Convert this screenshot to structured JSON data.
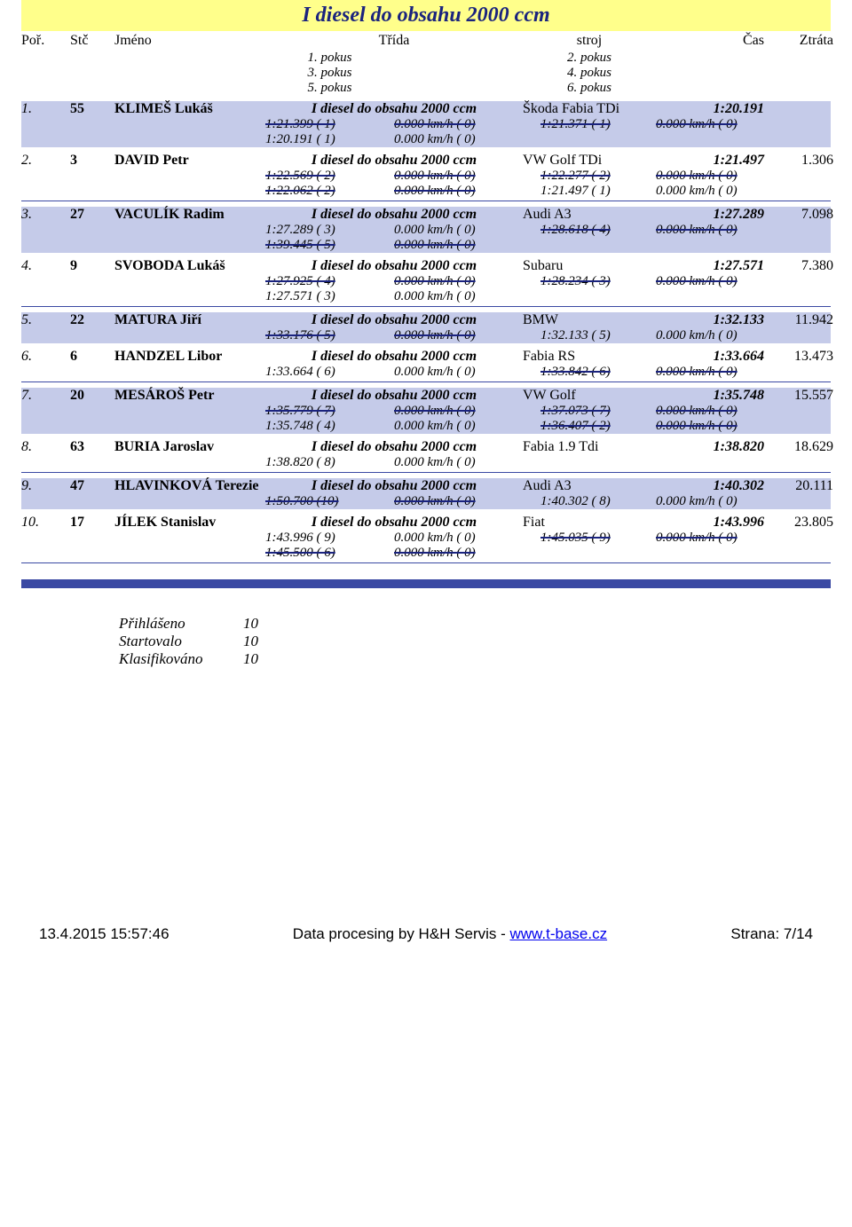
{
  "title": "I diesel do obsahu 2000 ccm",
  "headers": {
    "por": "Poř.",
    "stc": "Stč",
    "jmeno": "Jméno",
    "trida": "Třída",
    "stroj": "stroj",
    "cas": "Čas",
    "ztrata": "Ztráta",
    "p1": "1. pokus",
    "p2": "2. pokus",
    "p3": "3. pokus",
    "p4": "4. pokus",
    "p5": "5. pokus",
    "p6": "6. pokus"
  },
  "rows": [
    {
      "por": "1.",
      "stc": "55",
      "name": "KLIMEŠ Lukáš",
      "class": "I diesel do obsahu 2000 ccm",
      "car": "Škoda Fabia TDi",
      "time": "1:20.191",
      "loss": "",
      "alt": true,
      "sub": [
        {
          "t1": "1:21.399 ( 1)",
          "t1s": true,
          "s1": "0.000 km/h  ( 0)",
          "s1s": true,
          "t2": "1:21.371 ( 1)",
          "t2s": true,
          "s2": "0.000 km/h  ( 0)",
          "s2s": true
        },
        {
          "t1": "1:20.191 ( 1)",
          "t1s": false,
          "s1": "0.000 km/h  ( 0)",
          "s1s": false,
          "t2": "",
          "t2s": false,
          "s2": "",
          "s2s": false
        }
      ]
    },
    {
      "por": "2.",
      "stc": "3",
      "name": "DAVID Petr",
      "class": "I diesel do obsahu 2000 ccm",
      "car": "VW Golf  TDi",
      "time": "1:21.497",
      "loss": "1.306",
      "alt": false,
      "sub": [
        {
          "t1": "1:22.569 ( 2)",
          "t1s": true,
          "s1": "0.000 km/h  ( 0)",
          "s1s": true,
          "t2": "1:22.277 ( 2)",
          "t2s": true,
          "s2": "0.000 km/h  ( 0)",
          "s2s": true
        },
        {
          "t1": "1:22.062 ( 2)",
          "t1s": true,
          "s1": "0.000 km/h  ( 0)",
          "s1s": true,
          "t2": "1:21.497 ( 1)",
          "t2s": false,
          "s2": "0.000 km/h  ( 0)",
          "s2s": false
        }
      ]
    },
    {
      "por": "3.",
      "stc": "27",
      "name": "VACULÍK Radim",
      "class": "I diesel do obsahu 2000 ccm",
      "car": "Audi A3",
      "time": "1:27.289",
      "loss": "7.098",
      "alt": true,
      "sub": [
        {
          "t1": "1:27.289 ( 3)",
          "t1s": false,
          "s1": "0.000 km/h  ( 0)",
          "s1s": false,
          "t2": "1:28.618 ( 4)",
          "t2s": true,
          "s2": "0.000 km/h  ( 0)",
          "s2s": true
        },
        {
          "t1": "1:39.445 ( 5)",
          "t1s": true,
          "s1": "0.000 km/h  ( 0)",
          "s1s": true,
          "t2": "",
          "t2s": false,
          "s2": "",
          "s2s": false
        }
      ]
    },
    {
      "por": "4.",
      "stc": "9",
      "name": "SVOBODA Lukáš",
      "class": "I diesel do obsahu 2000 ccm",
      "car": "Subaru",
      "time": "1:27.571",
      "loss": "7.380",
      "alt": false,
      "sub": [
        {
          "t1": "1:27.925 ( 4)",
          "t1s": true,
          "s1": "0.000 km/h  ( 0)",
          "s1s": true,
          "t2": "1:28.234 ( 3)",
          "t2s": true,
          "s2": "0.000 km/h  ( 0)",
          "s2s": true
        },
        {
          "t1": "1:27.571 ( 3)",
          "t1s": false,
          "s1": "0.000 km/h  ( 0)",
          "s1s": false,
          "t2": "",
          "t2s": false,
          "s2": "",
          "s2s": false
        }
      ]
    },
    {
      "por": "5.",
      "stc": "22",
      "name": "MATURA Jiří",
      "class": "I diesel do obsahu 2000 ccm",
      "car": "BMW",
      "time": "1:32.133",
      "loss": "11.942",
      "alt": true,
      "sub": [
        {
          "t1": "1:33.176 ( 5)",
          "t1s": true,
          "s1": "0.000 km/h  ( 0)",
          "s1s": true,
          "t2": "1:32.133 ( 5)",
          "t2s": false,
          "s2": "0.000 km/h  ( 0)",
          "s2s": false
        }
      ]
    },
    {
      "por": "6.",
      "stc": "6",
      "name": "HANDZEL Libor",
      "class": "I diesel do obsahu 2000 ccm",
      "car": "Fabia RS",
      "time": "1:33.664",
      "loss": "13.473",
      "alt": false,
      "sub": [
        {
          "t1": "1:33.664 ( 6)",
          "t1s": false,
          "s1": "0.000 km/h  ( 0)",
          "s1s": false,
          "t2": "1:33.842 ( 6)",
          "t2s": true,
          "s2": "0.000 km/h  ( 0)",
          "s2s": true
        }
      ]
    },
    {
      "por": "7.",
      "stc": "20",
      "name": "MESÁROŠ Petr",
      "class": "I diesel do obsahu 2000 ccm",
      "car": "VW Golf",
      "time": "1:35.748",
      "loss": "15.557",
      "alt": true,
      "sub": [
        {
          "t1": "1:35.779 ( 7)",
          "t1s": true,
          "s1": "0.000 km/h  ( 0)",
          "s1s": true,
          "t2": "1:37.073 ( 7)",
          "t2s": true,
          "s2": "0.000 km/h  ( 0)",
          "s2s": true
        },
        {
          "t1": "1:35.748 ( 4)",
          "t1s": false,
          "s1": "0.000 km/h  ( 0)",
          "s1s": false,
          "t2": "1:36.407 ( 2)",
          "t2s": true,
          "s2": "0.000 km/h  ( 0)",
          "s2s": true
        }
      ]
    },
    {
      "por": "8.",
      "stc": "63",
      "name": "BURIA Jaroslav",
      "class": "I diesel do obsahu 2000 ccm",
      "car": "Fabia 1.9 Tdi",
      "time": "1:38.820",
      "loss": "18.629",
      "alt": false,
      "sub": [
        {
          "t1": "1:38.820 ( 8)",
          "t1s": false,
          "s1": "0.000 km/h  ( 0)",
          "s1s": false,
          "t2": "",
          "t2s": false,
          "s2": "",
          "s2s": false
        }
      ]
    },
    {
      "por": "9.",
      "stc": "47",
      "name": "HLAVINKOVÁ Terezie",
      "class": "I diesel do obsahu 2000 ccm",
      "car": "Audi A3",
      "time": "1:40.302",
      "loss": "20.111",
      "alt": true,
      "sub": [
        {
          "t1": "1:50.700 (10)",
          "t1s": true,
          "s1": "0.000 km/h  ( 0)",
          "s1s": true,
          "t2": "1:40.302 ( 8)",
          "t2s": false,
          "s2": "0.000 km/h  ( 0)",
          "s2s": false
        }
      ]
    },
    {
      "por": "10.",
      "stc": "17",
      "name": "JÍLEK Stanislav",
      "class": "I diesel do obsahu 2000 ccm",
      "car": "Fiat",
      "time": "1:43.996",
      "loss": "23.805",
      "alt": false,
      "sub": [
        {
          "t1": "1:43.996 ( 9)",
          "t1s": false,
          "s1": "0.000 km/h  ( 0)",
          "s1s": false,
          "t2": "1:45.035 ( 9)",
          "t2s": true,
          "s2": "0.000 km/h  ( 0)",
          "s2s": true
        },
        {
          "t1": "1:45.500 ( 6)",
          "t1s": true,
          "s1": "0.000 km/h  ( 0)",
          "s1s": true,
          "t2": "",
          "t2s": false,
          "s2": "",
          "s2s": false
        }
      ]
    }
  ],
  "summary": {
    "prihlaseno_lbl": "Přihlášeno",
    "prihlaseno_val": "10",
    "startovalo_lbl": "Startovalo",
    "startovalo_val": "10",
    "klasifikovano_lbl": "Klasifikováno",
    "klasifikovano_val": "10"
  },
  "footer": {
    "left": "13.4.2015 15:57:46",
    "mid_pre": "Data procesing by H&H Servis - ",
    "mid_link": "www.t-base.cz",
    "right": "Strana: 7/14"
  }
}
